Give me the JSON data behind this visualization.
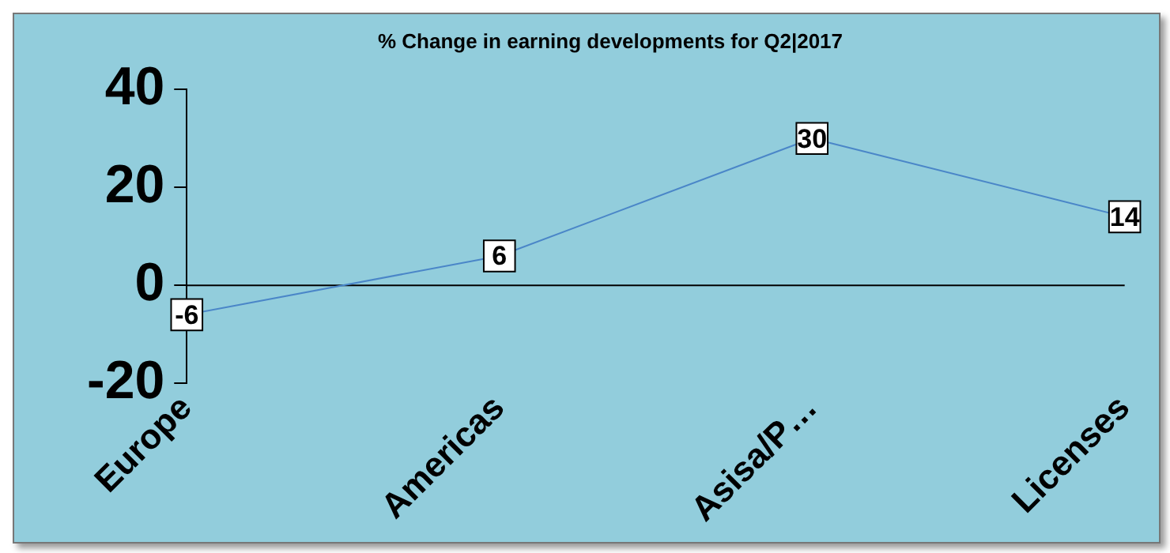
{
  "chart_data": {
    "type": "line",
    "title": "% Change in earning developments for Q2|2017",
    "categories": [
      "Europe",
      "Americas",
      "Asisa/P…",
      "Licenses"
    ],
    "values": [
      -6,
      6,
      30,
      14
    ],
    "color": "#4a86c8",
    "ylim": [
      -20,
      40
    ],
    "yticks": [
      -20,
      0,
      20,
      40
    ],
    "ref_lines": [
      {
        "axis": "y",
        "value": 0,
        "color": "#000000"
      }
    ],
    "grid": false,
    "legend": false,
    "marker": "square",
    "data_labels": true
  }
}
